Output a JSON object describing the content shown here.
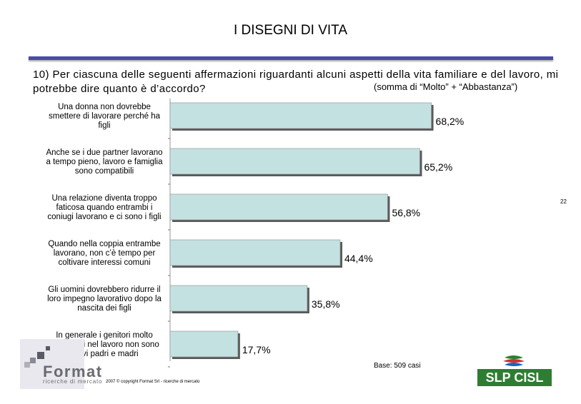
{
  "header": {
    "title": "I DISEGNI DI VITA",
    "question": "10) Per ciascuna delle seguenti affermazioni riguardanti alcuni aspetti della vita familiare e del lavoro, mi potrebbe dire quanto è d’accordo?",
    "subnote": "(somma di “Molto” + “Abbastanza”)"
  },
  "page_number": "22",
  "chart_data": {
    "type": "bar",
    "orientation": "horizontal",
    "categories": [
      [
        "Una donna non dovrebbe",
        "smettere di lavorare perché ha",
        "figli"
      ],
      [
        "Anche se i due partner lavorano",
        "a tempo pieno, lavoro e famiglia",
        "sono compatibili"
      ],
      [
        "Una relazione diventa troppo",
        "faticosa quando entrambi i",
        "coniugi lavorano e ci sono i figli"
      ],
      [
        "Quando nella coppia entrambe",
        "lavorano, non c’è tempo per",
        "coltivare interessi comuni"
      ],
      [
        "Gli uomini dovrebbero ridurre il",
        "loro impegno lavorativo dopo la",
        "nascita dei figli"
      ],
      [
        "In generale i genitori molto",
        "impegnati nel lavoro non sono",
        "bravi padri e madri"
      ]
    ],
    "values": [
      68.2,
      65.2,
      56.8,
      44.4,
      35.8,
      17.7
    ],
    "value_labels": [
      "68,2%",
      "65,2%",
      "56,8%",
      "44,4%",
      "35,8%",
      "17,7%"
    ],
    "bar_color": "#c4e1e1",
    "xlim": [
      0,
      100
    ],
    "grid": false,
    "legend": "none"
  },
  "footer": {
    "base_note": "Base: 509 casi",
    "copyright": "2007 © copyright Format Srl - ricerche di mercato",
    "format_logo": {
      "word": "Format",
      "sub": "ricerche di mercato"
    },
    "slp_logo": {
      "text": "SLP CISL",
      "colors": [
        "#2e7d32",
        "#d32f2f",
        "#1565c0"
      ]
    }
  }
}
